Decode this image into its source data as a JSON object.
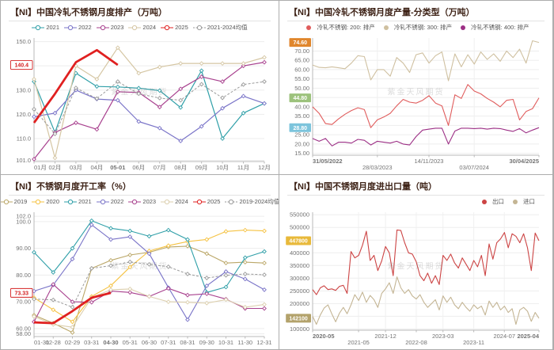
{
  "watermark": "紫金天风期货",
  "chart_data": [
    {
      "type": "line",
      "title": "【NI】中国冷轧不锈钢月度排产（万吨）",
      "legend_align": "center",
      "legend_marker": "ring",
      "ylim": [
        100.5,
        151.5
      ],
      "grid": "horizontal",
      "y_ticks": [
        {
          "v": 150,
          "label": "150.0"
        },
        {
          "v": 140,
          "label": "140.0"
        },
        {
          "v": 130,
          "label": "130.0"
        },
        {
          "v": 120,
          "label": "120.0"
        },
        {
          "v": 110,
          "label": "110.0"
        },
        {
          "v": 101,
          "label": "101.0"
        }
      ],
      "x_slots": 12,
      "x_labels": [
        {
          "i": 0,
          "label": "01月"
        },
        {
          "i": 1,
          "label": "02月"
        },
        {
          "i": 2,
          "label": "03月"
        },
        {
          "i": 3,
          "label": "04月"
        },
        {
          "i": 4,
          "label": "05-01",
          "color": "#d42020",
          "bold": true
        },
        {
          "i": 5,
          "label": "06月"
        },
        {
          "i": 6,
          "label": "07月"
        },
        {
          "i": 7,
          "label": "08月"
        },
        {
          "i": 8,
          "label": "09月"
        },
        {
          "i": 9,
          "label": "10月"
        },
        {
          "i": 10,
          "label": "11月"
        },
        {
          "i": 11,
          "label": "12月"
        }
      ],
      "value_tags": [
        {
          "v": 140.4,
          "label": "140.4",
          "bg": "#ffffff",
          "fg": "#d42020",
          "border": "#d42020"
        }
      ],
      "series": [
        {
          "name": "2021",
          "color": "#2f9fa8",
          "width": 1.2,
          "marker": true,
          "values": [
            133.5,
            112.5,
            137,
            131.5,
            131.3,
            130.8,
            129.8,
            122.8,
            138,
            110,
            120.5,
            124.5
          ]
        },
        {
          "name": "2022",
          "color": "#7a74c8",
          "width": 1.2,
          "marker": true,
          "values": [
            119,
            120.5,
            130,
            126.3,
            125.8,
            117,
            114.3,
            109,
            115,
            122.5,
            127.5,
            124.5
          ]
        },
        {
          "name": "2023",
          "color": "#a8408e",
          "width": 1.2,
          "marker": true,
          "values": [
            101.5,
            112.5,
            116.5,
            113.8,
            129.3,
            129,
            123,
            130.5,
            135.5,
            133.5,
            140,
            141.5
          ]
        },
        {
          "name": "2024",
          "color": "#d5c6a3",
          "width": 1.2,
          "marker": true,
          "values": [
            134.5,
            102,
            140,
            134.5,
            147.5,
            137,
            139.5,
            141,
            141,
            141,
            141,
            143.5
          ]
        },
        {
          "name": "2025",
          "color": "#e02020",
          "width": 2.8,
          "marker": false,
          "values": [
            116.5,
            128.5,
            141.5,
            146.5,
            140.4,
            null,
            null,
            null,
            null,
            null,
            null,
            null
          ]
        },
        {
          "name": "2021-2024均值",
          "color": "#9a9a9a",
          "width": 1,
          "dash": "3,2",
          "marker": true,
          "values": [
            122.1,
            111.9,
            130.9,
            126.5,
            133.5,
            128.5,
            126.7,
            125.8,
            132.4,
            126.8,
            132.3,
            133.5
          ]
        }
      ]
    },
    {
      "type": "line",
      "title": "【NI】中国冷轧不锈钢月度产量-分类型（万吨）",
      "legend_align": "center",
      "legend_marker": "dot",
      "ylim": [
        14,
        77
      ],
      "grid": "both",
      "y_ticks": [
        {
          "v": 70,
          "label": "70.00"
        },
        {
          "v": 65,
          "label": "65.00"
        },
        {
          "v": 60,
          "label": "60.00"
        },
        {
          "v": 55,
          "label": "55.00"
        },
        {
          "v": 50,
          "label": "50.00"
        },
        {
          "v": 45,
          "label": "45.00"
        },
        {
          "v": 40,
          "label": "40.00"
        },
        {
          "v": 35,
          "label": "35.00"
        },
        {
          "v": 30,
          "label": "30.00"
        },
        {
          "v": 25,
          "label": "25.00"
        },
        {
          "v": 20,
          "label": "20.00"
        },
        {
          "v": 15,
          "label": "15.00"
        }
      ],
      "x_slots": 36,
      "x_labels": [
        {
          "f": 0,
          "label": "31/05/2022",
          "bold": true,
          "row": 0
        },
        {
          "f": 0.286,
          "label": "28/03/2023",
          "row": 1
        },
        {
          "f": 0.514,
          "label": "14/11/2023",
          "row": 0
        },
        {
          "f": 0.714,
          "label": "03/07/2024",
          "row": 1
        },
        {
          "f": 1,
          "label": "30/04/2025",
          "bold": true,
          "row": 0
        }
      ],
      "value_tags": [
        {
          "v": 74.6,
          "label": "74.60",
          "bg": "#e0862c",
          "fg": "#ffffff"
        },
        {
          "v": 44.8,
          "label": "44.80",
          "bg": "#9cc27c",
          "fg": "#ffffff"
        },
        {
          "v": 28.8,
          "label": "28.80",
          "bg": "#7cc4dc",
          "fg": "#ffffff"
        }
      ],
      "series": [
        {
          "name": "冷轧不锈钢: 200: 排产",
          "color": "#e05c5c",
          "width": 1.1,
          "marker": false,
          "values": [
            40,
            36.5,
            31,
            30.5,
            33.5,
            36,
            38,
            39.5,
            38.5,
            28.8,
            33,
            34.5,
            36.5,
            40.5,
            44,
            42.5,
            42,
            43.5,
            46,
            42,
            40.5,
            30,
            46.5,
            44.5,
            52,
            48.5,
            47,
            44.5,
            42.5,
            40,
            43.5,
            44,
            33,
            37.5,
            39,
            44.8
          ]
        },
        {
          "name": "冷轧不锈钢: 300: 排产",
          "color": "#cfc0a0",
          "width": 1.1,
          "marker": false,
          "values": [
            62.5,
            61.2,
            61,
            61.5,
            61,
            60.5,
            63.5,
            67.5,
            67,
            54.5,
            60,
            60,
            56.5,
            66.5,
            63.5,
            58.5,
            68,
            69,
            63.5,
            67.5,
            69.5,
            54,
            68.5,
            61.5,
            68,
            63,
            69.5,
            65.5,
            68.5,
            64.5,
            70,
            66.5,
            71,
            63.5,
            75.5,
            74.6
          ]
        },
        {
          "name": "冷轧不锈钢: 400: 排产",
          "color": "#9c2f85",
          "width": 1.1,
          "marker": false,
          "values": [
            23,
            21.5,
            23,
            19,
            21,
            21,
            20.5,
            22.5,
            22,
            19.5,
            21.5,
            21,
            20.5,
            21.5,
            20,
            19.5,
            24,
            27.5,
            28,
            28.5,
            28.5,
            20,
            27,
            28.5,
            28.5,
            28.3,
            28.5,
            28,
            28.5,
            28.3,
            27.5,
            26.8,
            28.3,
            26,
            27.5,
            28.8
          ]
        }
      ]
    },
    {
      "type": "line",
      "title": "【NI】不锈钢月度开工率（%）",
      "legend_align": "center",
      "legend_marker": "ring",
      "ylim": [
        57,
        103.5
      ],
      "grid": "horizontal",
      "y_ticks": [
        {
          "v": 102,
          "label": "102.0"
        },
        {
          "v": 100,
          "label": "100.0"
        },
        {
          "v": 90,
          "label": "90.00"
        },
        {
          "v": 80,
          "label": "80.00"
        },
        {
          "v": 70,
          "label": "70.00"
        },
        {
          "v": 60,
          "label": "60.00"
        },
        {
          "v": 58,
          "label": "58.00"
        }
      ],
      "x_slots": 13,
      "x_labels": [
        {
          "i": 0,
          "label": "01-31"
        },
        {
          "i": 1,
          "label": "02-28"
        },
        {
          "i": 2,
          "label": "02-29"
        },
        {
          "i": 3,
          "label": "03-31"
        },
        {
          "i": 4,
          "label": "04-30",
          "color": "#d42020",
          "bold": true
        },
        {
          "i": 5,
          "label": "05-31"
        },
        {
          "i": 6,
          "label": "06-30"
        },
        {
          "i": 7,
          "label": "07-31"
        },
        {
          "i": 8,
          "label": "08-31"
        },
        {
          "i": 9,
          "label": "09-30"
        },
        {
          "i": 10,
          "label": "10-31"
        },
        {
          "i": 11,
          "label": "11-30"
        },
        {
          "i": 12,
          "label": "12-31"
        }
      ],
      "value_tags": [
        {
          "v": 73.33,
          "label": "73.33",
          "bg": "#ffffff",
          "fg": "#d42020",
          "border": "#d42020"
        }
      ],
      "series": [
        {
          "name": "2019",
          "color": "#bba768",
          "width": 1.1,
          "marker": true,
          "values": [
            65,
            62,
            58.5,
            82.5,
            85.5,
            87.5,
            88.5,
            90.5,
            90.8,
            88,
            84.5,
            84.8,
            84.5
          ]
        },
        {
          "name": "2020",
          "color": "#f5c242",
          "width": 1.1,
          "marker": true,
          "values": [
            71.5,
            67,
            62.5,
            72,
            76,
            83,
            89,
            91,
            92.5,
            93.3,
            96.3,
            96.8,
            96.5
          ]
        },
        {
          "name": "2021",
          "color": "#2f9fa8",
          "width": 1.1,
          "marker": true,
          "values": [
            88.5,
            81,
            90,
            100.3,
            97.5,
            96.5,
            94.5,
            96.8,
            93.3,
            73.5,
            75.5,
            86.5,
            88.8
          ]
        },
        {
          "name": "2022",
          "color": "#7a74c8",
          "width": 1.1,
          "marker": true,
          "values": [
            74,
            76.3,
            86,
            98.8,
            93.3,
            94.3,
            88,
            75.3,
            63.3,
            76,
            81.3,
            78.5,
            74.5
          ]
        },
        {
          "name": "2023",
          "color": "#a8408e",
          "width": 1.1,
          "marker": true,
          "values": [
            62.5,
            76.5,
            70,
            69.8,
            74,
            73.5,
            72,
            75,
            72.5,
            73,
            71,
            67.5,
            67.5
          ]
        },
        {
          "name": "2024",
          "color": "#dccfae",
          "width": 1.1,
          "marker": true,
          "values": [
            64.5,
            61.5,
            60.5,
            71.5,
            74.5,
            74.8,
            72,
            70,
            69.8,
            69.5,
            70.8,
            68,
            69
          ]
        },
        {
          "name": "2025",
          "color": "#e02020",
          "width": 2.8,
          "marker": false,
          "values": [
            62.3,
            62,
            66.5,
            71.5,
            73.33,
            null,
            null,
            null,
            null,
            null,
            null,
            null,
            null
          ]
        },
        {
          "name": "2019-2024均值",
          "color": "#9a9a9a",
          "width": 1,
          "dash": "3,2",
          "marker": true,
          "values": [
            71,
            70.7,
            68,
            82.5,
            83.5,
            84.9,
            84,
            83.1,
            80.4,
            78.9,
            79.9,
            80.4,
            80.1
          ]
        }
      ]
    },
    {
      "type": "line",
      "title": "【NI】中国不锈钢月度进出口量（吨）",
      "legend_align": "right",
      "legend_marker": "dot",
      "ylim": [
        95000,
        560000
      ],
      "grid": "both",
      "y_ticks": [
        {
          "v": 550000,
          "label": "550000"
        },
        {
          "v": 500000,
          "label": "500000"
        },
        {
          "v": 450000,
          "label": "450000"
        },
        {
          "v": 400000,
          "label": "400000"
        },
        {
          "v": 350000,
          "label": "350000"
        },
        {
          "v": 300000,
          "label": "300000"
        },
        {
          "v": 250000,
          "label": "250000"
        },
        {
          "v": 200000,
          "label": "200000"
        },
        {
          "v": 150000,
          "label": "150000"
        },
        {
          "v": 100000,
          "label": "100000"
        }
      ],
      "x_slots": 60,
      "x_labels": [
        {
          "f": 0,
          "label": "2020-05",
          "bold": true,
          "row": 0
        },
        {
          "f": 0.203,
          "label": "2021-05",
          "row": 1
        },
        {
          "f": 0.322,
          "label": "2021-12",
          "row": 0
        },
        {
          "f": 0.458,
          "label": "2022-08",
          "row": 1
        },
        {
          "f": 0.576,
          "label": "2023-03",
          "row": 0
        },
        {
          "f": 0.712,
          "label": "2023-11",
          "row": 1
        },
        {
          "f": 0.847,
          "label": "2024-07",
          "row": 0
        },
        {
          "f": 1,
          "label": "2025-04",
          "bold": true,
          "row": 0
        }
      ],
      "value_tags": [
        {
          "v": 447800,
          "label": "447800",
          "bg": "#e8b93a",
          "fg": "#ffffff"
        },
        {
          "v": 142100,
          "label": "142100",
          "bg": "#b3a26b",
          "fg": "#ffffff"
        }
      ],
      "series": [
        {
          "name": "出口",
          "color": "#cc4444",
          "width": 1.1,
          "marker": false,
          "values": [
            255000,
            235000,
            262000,
            270000,
            255000,
            258000,
            252000,
            268000,
            272000,
            240000,
            405000,
            380000,
            390000,
            430000,
            485000,
            370000,
            390000,
            330000,
            368000,
            425000,
            400000,
            310000,
            490000,
            488000,
            440000,
            400000,
            395000,
            365000,
            310000,
            290000,
            320000,
            280000,
            310000,
            275000,
            390000,
            370000,
            395000,
            360000,
            340000,
            380000,
            355000,
            330000,
            370000,
            345000,
            390000,
            310000,
            435000,
            375000,
            440000,
            455000,
            480000,
            420000,
            475000,
            465000,
            440000,
            475000,
            420000,
            330000,
            478000,
            447800
          ]
        },
        {
          "name": "进口",
          "color": "#c4b594",
          "width": 1.1,
          "marker": false,
          "values": [
            150000,
            118000,
            155000,
            182000,
            195000,
            160000,
            128000,
            162000,
            185000,
            160000,
            195000,
            235000,
            212000,
            245000,
            205000,
            232000,
            215000,
            185000,
            240000,
            258000,
            282000,
            240000,
            305000,
            262000,
            240000,
            255000,
            230000,
            218000,
            235000,
            205000,
            185000,
            200000,
            215000,
            175000,
            230000,
            205000,
            225000,
            195000,
            180000,
            205000,
            185000,
            170000,
            195000,
            180000,
            190000,
            155000,
            210000,
            185000,
            205000,
            175000,
            190000,
            165000,
            180000,
            118000,
            175000,
            185000,
            170000,
            130000,
            165000,
            142100
          ]
        }
      ]
    }
  ]
}
